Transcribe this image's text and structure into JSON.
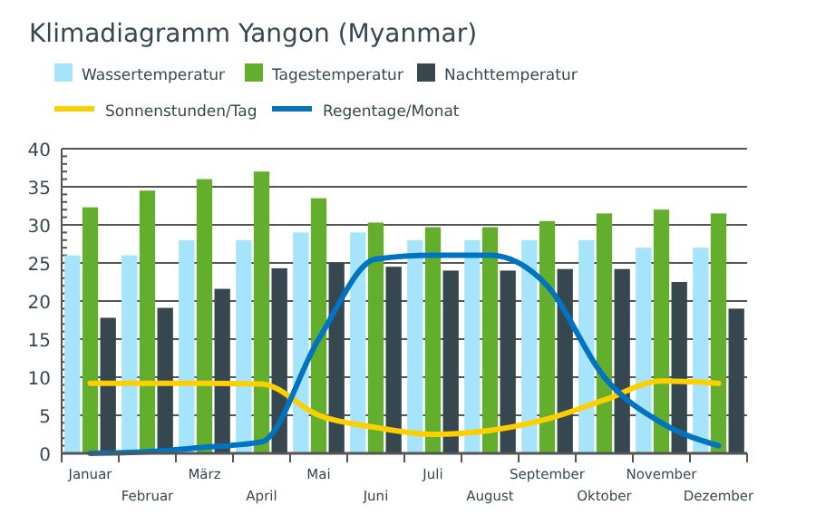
{
  "chart_data": {
    "type": "bar",
    "title": "Klimadiagramm Yangon (Myanmar)",
    "categories": [
      "Januar",
      "Februar",
      "März",
      "April",
      "Mai",
      "Juni",
      "Juli",
      "August",
      "September",
      "Oktober",
      "November",
      "Dezember"
    ],
    "series": [
      {
        "name": "Wassertemperatur",
        "color": "#a6e4fb",
        "values": [
          26,
          26,
          28,
          28,
          29,
          29,
          28,
          28,
          28,
          28,
          27,
          27
        ]
      },
      {
        "name": "Tagestemperatur",
        "color": "#63ae2d",
        "values": [
          32.3,
          34.5,
          36,
          37,
          33.5,
          30.3,
          29.7,
          29.7,
          30.5,
          31.5,
          32,
          31.5
        ]
      },
      {
        "name": "Nachttemperatur",
        "color": "#37474f",
        "values": [
          17.8,
          19.1,
          21.6,
          24.3,
          25,
          24.5,
          24,
          24,
          24.2,
          24.2,
          22.5,
          19
        ]
      },
      {
        "name": "Sonnenstunden/Tag",
        "type": "line",
        "color": "#fcd000",
        "values": [
          9.2,
          9.2,
          9.2,
          9.1,
          5,
          3.4,
          2.5,
          3,
          4.5,
          7,
          9.5,
          9.2
        ]
      },
      {
        "name": "Regentage/Monat",
        "type": "line",
        "color": "#0074c1",
        "values": [
          0,
          0.2,
          0.8,
          1.5,
          15,
          25.5,
          26,
          26,
          22,
          10,
          4,
          1
        ]
      }
    ],
    "ylim": [
      0,
      40
    ],
    "yticks": [
      0,
      5,
      10,
      15,
      20,
      25,
      30,
      35,
      40
    ],
    "grid": "y",
    "legend": "top left"
  }
}
